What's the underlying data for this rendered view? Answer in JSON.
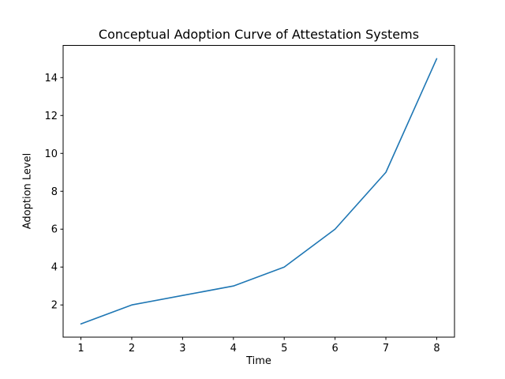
{
  "chart_data": {
    "type": "line",
    "title": "Conceptual Adoption Curve of Attestation Systems",
    "xlabel": "Time",
    "ylabel": "Adoption Level",
    "x": [
      1,
      2,
      3,
      4,
      5,
      6,
      7,
      8
    ],
    "y": [
      1,
      2,
      2.5,
      3,
      4,
      6,
      9,
      15
    ],
    "xticks": [
      1,
      2,
      3,
      4,
      5,
      6,
      7,
      8
    ],
    "yticks": [
      2,
      4,
      6,
      8,
      10,
      12,
      14
    ],
    "xlim": [
      0.65,
      8.35
    ],
    "ylim": [
      0.3,
      15.7
    ],
    "line_color": "#1f77b4",
    "axis_color": "#000000",
    "background_color": "#ffffff",
    "grid": false,
    "legend_position": "none"
  }
}
